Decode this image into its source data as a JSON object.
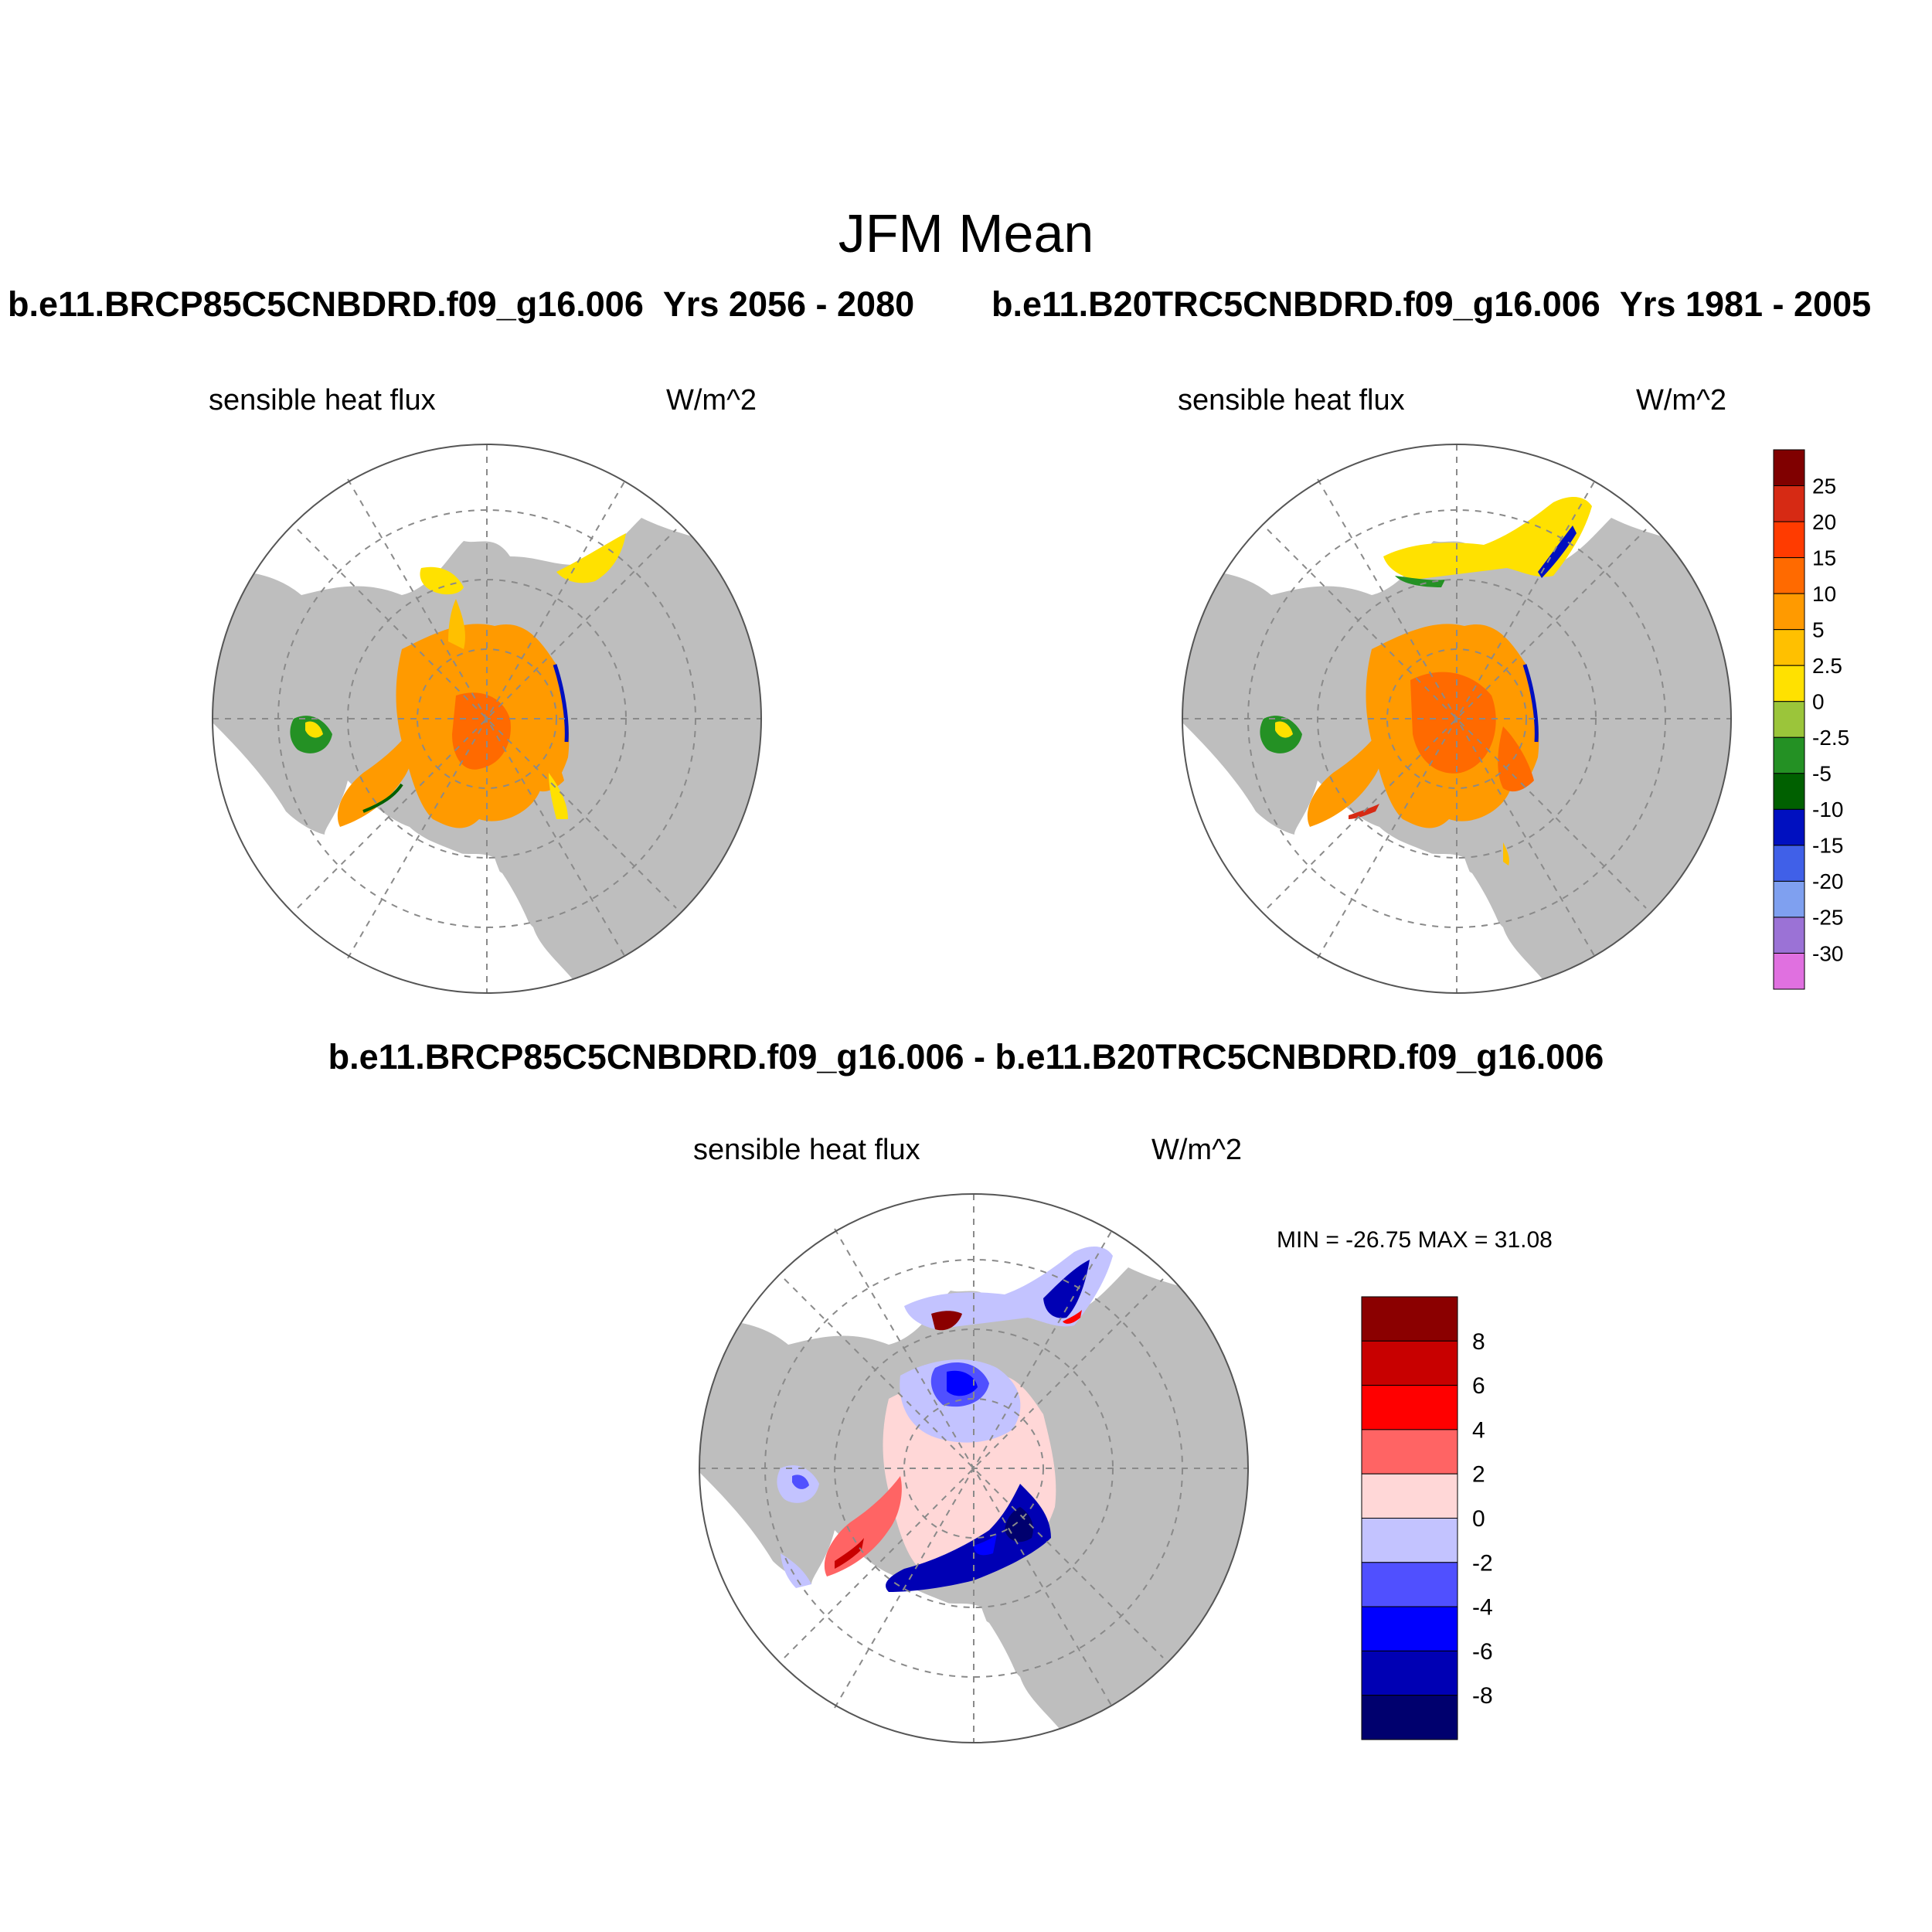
{
  "title": "JFM Mean",
  "panels": {
    "left": {
      "case": "b.e11.BRCP85C5CNBDRD.f09_g16.006",
      "years": "Yrs 2056 - 2080",
      "variable": "sensible heat flux",
      "units": "W/m^2"
    },
    "right": {
      "case": "b.e11.B20TRC5CNBDRD.f09_g16.006",
      "years": "Yrs 1981 - 2005",
      "variable": "sensible heat flux",
      "units": "W/m^2"
    },
    "diff": {
      "title": "b.e11.BRCP85C5CNBDRD.f09_g16.006 - b.e11.B20TRC5CNBDRD.f09_g16.006",
      "variable": "sensible heat flux",
      "units": "W/m^2",
      "minmax": "MIN = -26.75 MAX =  31.08"
    }
  },
  "colors": {
    "land": "#bebebe",
    "ocean": "#ffffff",
    "grid": "#8a8a8a"
  },
  "chart_data": [
    {
      "type": "heatmap",
      "projection": "north polar stereographic",
      "title": "b.e11.BRCP85C5CNBDRD.f09_g16.006  Yrs 2056 - 2080",
      "variable": "sensible heat flux",
      "units": "W/m^2",
      "colorbar": {
        "labels": [
          "25",
          "20",
          "15",
          "10",
          "5",
          "2.5",
          "0",
          "-2.5",
          "-5",
          "-10",
          "-15",
          "-20",
          "-25",
          "-30"
        ],
        "colors": [
          "#800000",
          "#d62a14",
          "#ff3b00",
          "#ff6a00",
          "#ff9a00",
          "#ffc000",
          "#ffe100",
          "#9bc53a",
          "#249124",
          "#006000",
          "#0010c0",
          "#4060e8",
          "#7fa0f0",
          "#9b72d6",
          "#e070e0"
        ]
      }
    },
    {
      "type": "heatmap",
      "projection": "north polar stereographic",
      "title": "b.e11.B20TRC5CNBDRD.f09_g16.006  Yrs 1981 - 2005",
      "variable": "sensible heat flux",
      "units": "W/m^2",
      "colorbar": "shared with first panel"
    },
    {
      "type": "heatmap",
      "projection": "north polar stereographic",
      "title": "b.e11.BRCP85C5CNBDRD.f09_g16.006 - b.e11.B20TRC5CNBDRD.f09_g16.006",
      "variable": "sensible heat flux",
      "units": "W/m^2",
      "min": -26.75,
      "max": 31.08,
      "colorbar": {
        "labels": [
          "8",
          "6",
          "4",
          "2",
          "0",
          "-2",
          "-4",
          "-6",
          "-8"
        ],
        "colors": [
          "#8b0000",
          "#c80000",
          "#ff0000",
          "#ff6464",
          "#ffd7d7",
          "#c3c3ff",
          "#5050ff",
          "#0000ff",
          "#0000b4",
          "#00006e"
        ]
      }
    }
  ]
}
